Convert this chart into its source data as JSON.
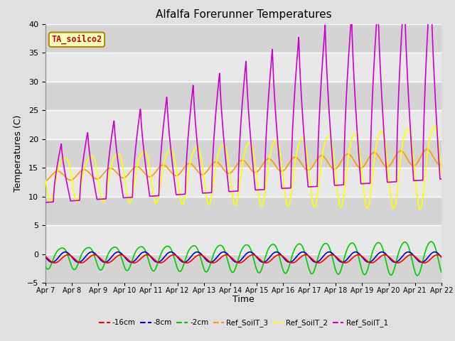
{
  "title": "Alfalfa Forerunner Temperatures",
  "xlabel": "Time",
  "ylabel": "Temperatures (C)",
  "ylim": [
    -5,
    40
  ],
  "yticks": [
    -5,
    0,
    5,
    10,
    15,
    20,
    25,
    30,
    35,
    40
  ],
  "xlim": [
    0,
    15
  ],
  "xtick_labels": [
    "Apr 7",
    "Apr 8",
    "Apr 9",
    "Apr 10",
    "Apr 11",
    "Apr 12",
    "Apr 13",
    "Apr 14",
    "Apr 15",
    "Apr 16",
    "Apr 17",
    "Apr 18",
    "Apr 19",
    "Apr 20",
    "Apr 21",
    "Apr 22"
  ],
  "annotation_text": "TA_soilco2",
  "annotation_bg": "#ffffc0",
  "annotation_border": "#b8860b",
  "annotation_text_color": "#cc0000",
  "colors": {
    "minus16cm": "#ff0000",
    "minus8cm": "#0000cc",
    "minus2cm": "#00cc00",
    "Ref_SoilT_3": "#ff9900",
    "Ref_SoilT_2": "#ffff00",
    "Ref_SoilT_1": "#cc00cc"
  },
  "bg_bands": [
    "#d8d8d8",
    "#e8e8e8"
  ],
  "n_points": 1500
}
